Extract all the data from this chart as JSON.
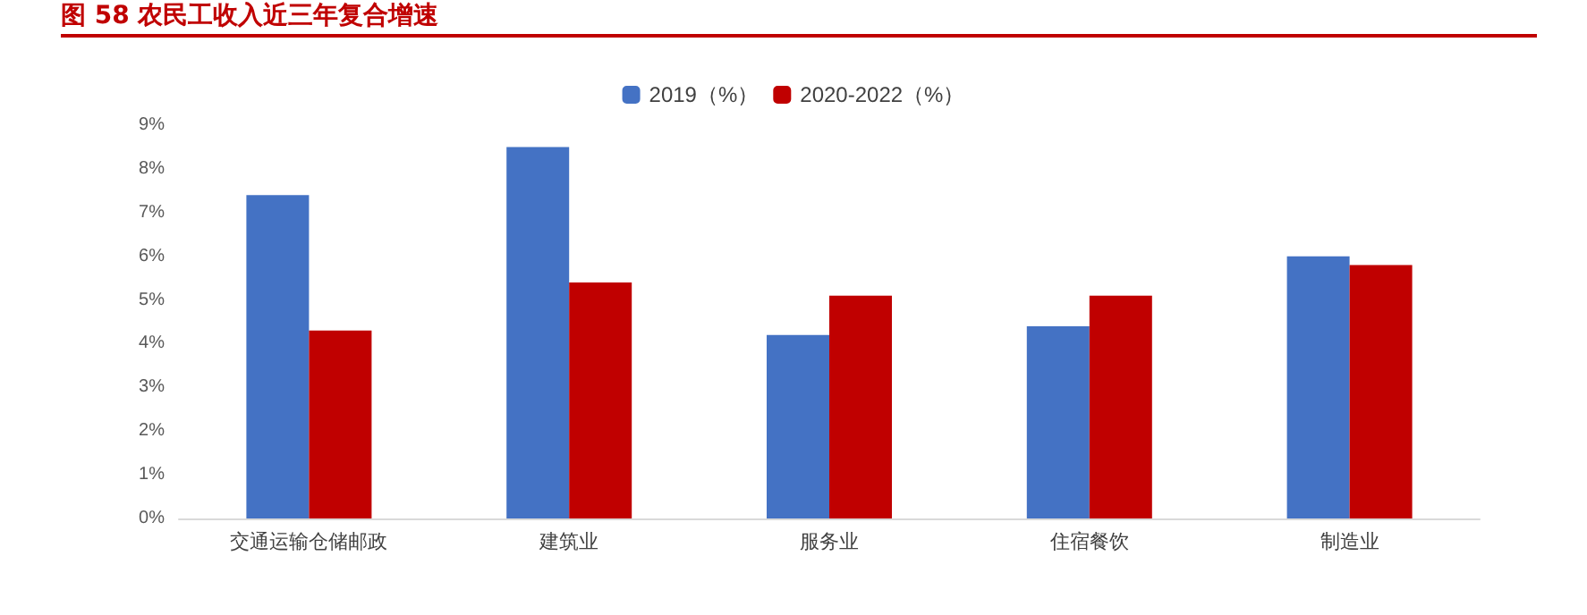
{
  "chart_data": {
    "type": "bar",
    "title": "图 58    农民工收入近三年复合增速",
    "categories": [
      "交通运输仓储邮政",
      "建筑业",
      "服务业",
      "住宿餐饮",
      "制造业"
    ],
    "series": [
      {
        "name": "2019（%）",
        "color": "#4472c4",
        "values": [
          7.4,
          8.5,
          4.2,
          4.4,
          6.0
        ]
      },
      {
        "name": "2020-2022（%）",
        "color": "#c00000",
        "values": [
          4.3,
          5.4,
          5.1,
          5.1,
          5.8
        ]
      }
    ],
    "ylim": [
      0,
      9
    ],
    "yticks": [
      {
        "value": 0,
        "label": "0%"
      },
      {
        "value": 1,
        "label": "1%"
      },
      {
        "value": 2,
        "label": "2%"
      },
      {
        "value": 3,
        "label": "3%"
      },
      {
        "value": 4,
        "label": "4%"
      },
      {
        "value": 5,
        "label": "5%"
      },
      {
        "value": 6,
        "label": "6%"
      },
      {
        "value": 7,
        "label": "7%"
      },
      {
        "value": 8,
        "label": "8%"
      },
      {
        "value": 9,
        "label": "9%"
      }
    ],
    "grid": false,
    "legend": "top"
  }
}
